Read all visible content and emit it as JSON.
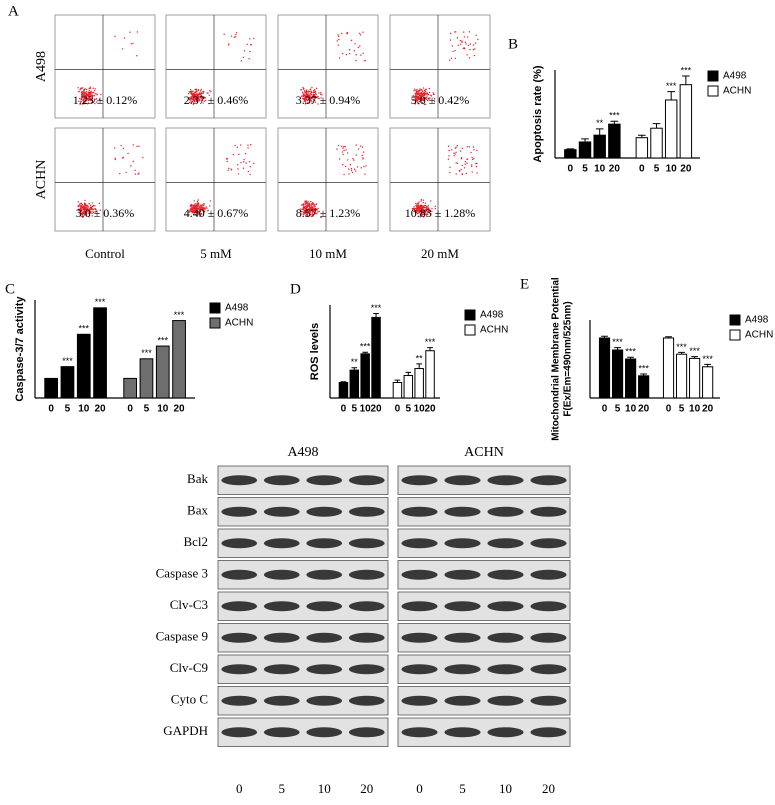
{
  "panel_a": {
    "panel": "A",
    "rows": [
      "A498",
      "ACHN"
    ],
    "columns": [
      "Control",
      "5 mM",
      "10 mM",
      "20 mM"
    ],
    "cells": [
      [
        "1.23 ± 0.12%",
        "2.37 ± 0.46%",
        "3.37 ± 0.94%",
        "5.0 ± 0.42%"
      ],
      [
        "3.0 ± 0.36%",
        "4.40 ± 0.67%",
        "8.57 ± 1.23%",
        "10.83 ± 1.28%"
      ]
    ]
  },
  "chart_data": [
    {
      "type": "bar",
      "panel": "B",
      "ylabel": [
        "Apoptosis rate (%)"
      ],
      "categories": [
        "0",
        "5",
        "10",
        "20"
      ],
      "ylim": [
        0,
        13
      ],
      "series": [
        {
          "name": "A498",
          "color": "#000000",
          "values": [
            1.23,
            2.37,
            3.37,
            5.0
          ],
          "errors": [
            0.12,
            0.46,
            0.94,
            0.42
          ],
          "significance": [
            null,
            null,
            "**",
            "***"
          ]
        },
        {
          "name": "ACHN",
          "color": "#ffffff",
          "values": [
            3.0,
            4.4,
            8.57,
            10.83
          ],
          "errors": [
            0.36,
            0.67,
            1.23,
            1.28
          ],
          "significance": [
            null,
            null,
            "***",
            "***"
          ]
        }
      ]
    },
    {
      "type": "bar",
      "panel": "C",
      "ylabel": [
        "Caspase-3/7 activity"
      ],
      "categories": [
        "0",
        "5",
        "10",
        "20"
      ],
      "ylim": [
        0,
        5
      ],
      "series": [
        {
          "name": "A498",
          "color": "#000000",
          "values": [
            1.0,
            1.6,
            3.25,
            4.6
          ],
          "significance": [
            null,
            "***",
            "***",
            "***"
          ]
        },
        {
          "name": "ACHN",
          "color": "#6e6e6e",
          "values": [
            1.0,
            2.0,
            2.65,
            3.95
          ],
          "significance": [
            null,
            "***",
            "***",
            "***"
          ]
        }
      ]
    },
    {
      "type": "bar",
      "panel": "D",
      "ylabel": [
        "ROS levels"
      ],
      "categories": [
        "0",
        "5",
        "10",
        "20"
      ],
      "ylim": [
        0,
        6
      ],
      "series": [
        {
          "name": "A498",
          "color": "#000000",
          "values": [
            1.0,
            1.8,
            2.85,
            5.2
          ],
          "errors": [
            0.05,
            0.15,
            0.1,
            0.25
          ],
          "significance": [
            null,
            "**",
            "***",
            "***"
          ]
        },
        {
          "name": "ACHN",
          "color": "#ffffff",
          "values": [
            1.0,
            1.45,
            1.9,
            3.05
          ],
          "errors": [
            0.15,
            0.2,
            0.3,
            0.2
          ],
          "significance": [
            null,
            null,
            "**",
            "***"
          ]
        }
      ]
    },
    {
      "type": "bar",
      "panel": "E",
      "ylabel": [
        "Mitochondrial Membrane Potential",
        "F(Ex/Em=490nm/525nm)"
      ],
      "categories": [
        "0",
        "5",
        "10",
        "20"
      ],
      "ylim": [
        0,
        1.3
      ],
      "series": [
        {
          "name": "A498",
          "color": "#000000",
          "values": [
            1.0,
            0.8,
            0.65,
            0.37
          ],
          "errors": [
            0.03,
            0.04,
            0.03,
            0.03
          ],
          "significance": [
            null,
            "***",
            "***",
            "***"
          ]
        },
        {
          "name": "ACHN",
          "color": "#ffffff",
          "values": [
            1.0,
            0.73,
            0.66,
            0.52
          ],
          "errors": [
            0.02,
            0.03,
            0.03,
            0.04
          ],
          "significance": [
            null,
            "***",
            "***",
            "***"
          ]
        }
      ]
    }
  ],
  "blot": {
    "groups": [
      "A498",
      "ACHN"
    ],
    "lanes": [
      "0",
      "5",
      "10",
      "20"
    ],
    "proteins": [
      "Bak",
      "Bax",
      "Bcl2",
      "Caspase 3",
      "Clv-C3",
      "Caspase 9",
      "Clv-C9",
      "Cyto C",
      "GAPDH"
    ]
  }
}
